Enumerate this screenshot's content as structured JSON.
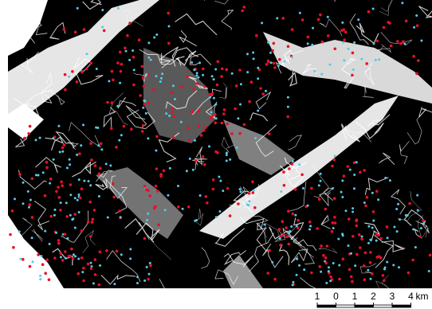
{
  "scale_bar": {
    "labels": [
      "1",
      "0",
      "1",
      "2",
      "3",
      "4"
    ],
    "unit": "km"
  }
}
